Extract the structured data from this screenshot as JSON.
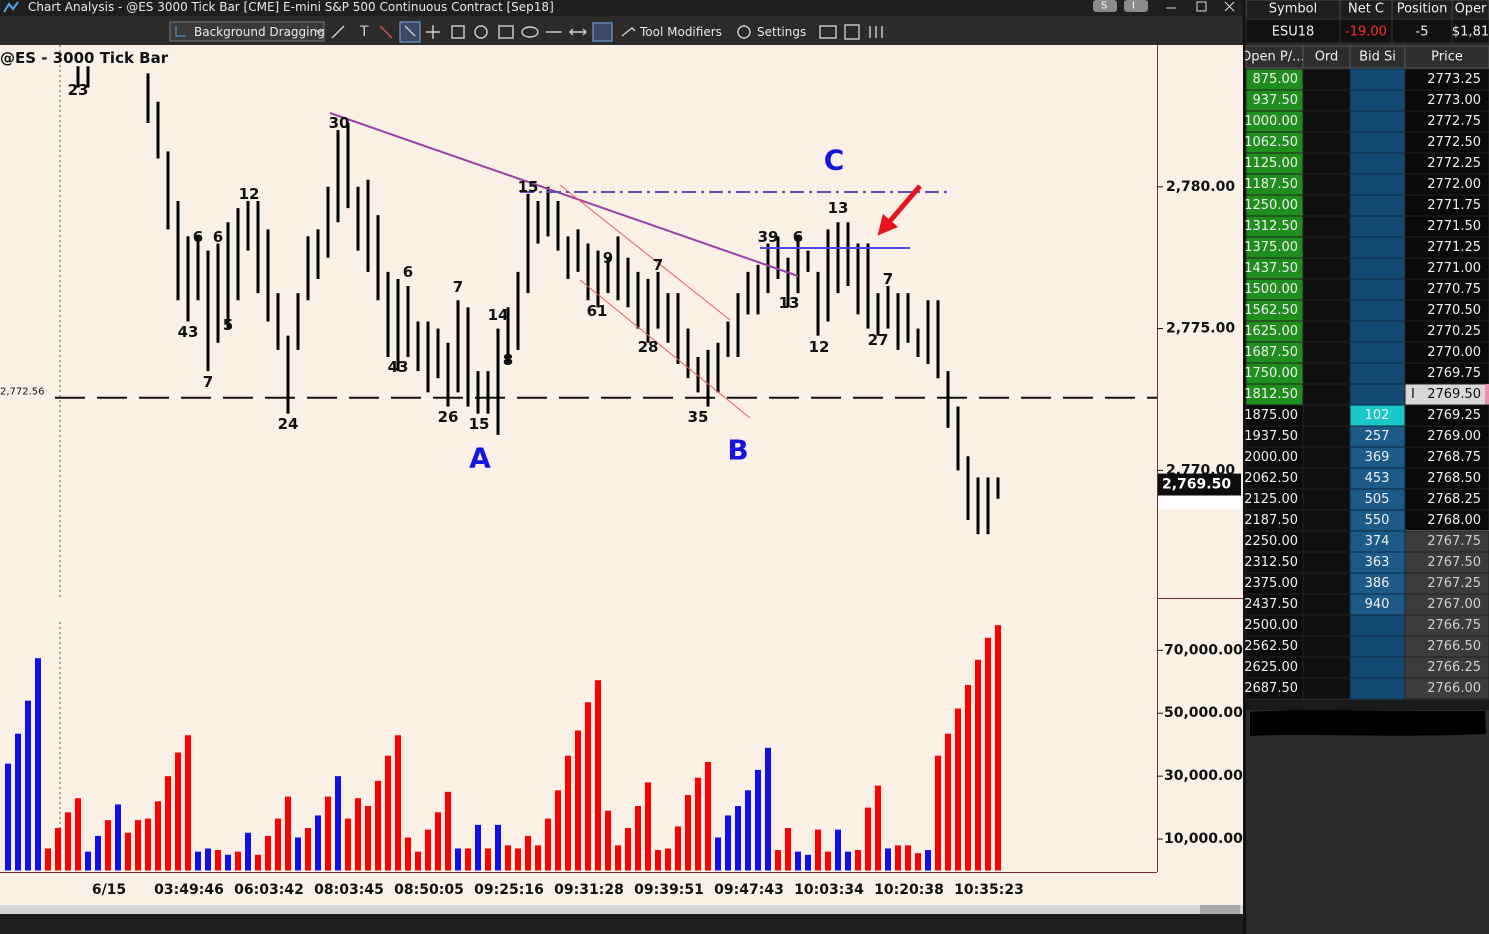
{
  "window": {
    "title": "Chart Analysis - @ES 3000 Tick Bar [CME] E-mini S&P 500 Continuous Contract [Sep18]",
    "badges": [
      "S",
      "I"
    ],
    "toolbar": [
      "Background Dragging",
      "Tool Modifiers",
      "Settings"
    ]
  },
  "chart_data": [
    {
      "type": "range_bar",
      "title": "@ES - 3000 Tick Bar",
      "color": "#000000",
      "highs": [
        null,
        null,
        null,
        null,
        null,
        null,
        null,
        2784.25,
        2784.25,
        null,
        null,
        null,
        null,
        null,
        2784.0,
        2783.0,
        2781.25,
        2779.5,
        2778.25,
        2778.25,
        2777.75,
        2778.0,
        2778.75,
        2779.25,
        2779.5,
        2779.5,
        2778.5,
        2776.25,
        2774.75,
        2776.25,
        2778.25,
        2778.5,
        2780.0,
        2782.0,
        2782.25,
        2780.0,
        2780.25,
        2779.0,
        2777.0,
        2776.75,
        2776.5,
        2775.25,
        2775.25,
        2775.0,
        2774.5,
        2776.0,
        2775.75,
        2773.5,
        2773.5,
        2775.0,
        2775.75,
        2777.0,
        2779.75,
        2779.5,
        2780.0,
        2779.5,
        2778.25,
        2778.5,
        2778.0,
        2777.75,
        2777.5,
        2778.25,
        2777.5,
        2777.0,
        2776.75,
        2777.0,
        2776.25,
        2776.25,
        2775.0,
        2774.0,
        2774.25,
        2774.5,
        2775.25,
        2776.25,
        2777.0,
        2777.25,
        2778.0,
        2778.25,
        2777.5,
        2778.25,
        2777.75,
        2777.0,
        2778.5,
        2778.75,
        2778.75,
        2778.0,
        2778.0,
        2776.25,
        2776.5,
        2776.25,
        2776.25,
        2775.0,
        2776.0,
        2776.0,
        2773.5,
        2772.25,
        2770.5,
        2769.75,
        2769.75,
        2769.75
      ],
      "lows": [
        null,
        null,
        null,
        null,
        null,
        null,
        null,
        2783.5,
        2783.5,
        null,
        null,
        null,
        null,
        null,
        2782.25,
        2781.0,
        2778.5,
        2776.0,
        2775.25,
        2776.0,
        2773.5,
        2774.5,
        2775.0,
        2776.0,
        2777.75,
        2776.25,
        2775.25,
        2774.25,
        2772.0,
        2774.25,
        2776.0,
        2776.75,
        2777.5,
        2778.75,
        2779.25,
        2777.75,
        2777.0,
        2776.0,
        2774.0,
        2773.5,
        2774.0,
        2773.5,
        2772.75,
        2773.25,
        2772.25,
        2772.75,
        2772.25,
        2772.0,
        2772.0,
        2771.25,
        2773.75,
        2774.25,
        2776.25,
        2778.0,
        2778.25,
        2777.75,
        2776.75,
        2777.0,
        2776.0,
        2775.75,
        2776.25,
        2776.0,
        2775.75,
        2775.0,
        2774.5,
        2775.0,
        2774.5,
        2773.75,
        2773.25,
        2772.75,
        2772.25,
        2772.75,
        2774.0,
        2774.0,
        2775.5,
        2775.5,
        2776.25,
        2776.75,
        2775.75,
        2776.25,
        2777.0,
        2774.75,
        2775.25,
        2776.25,
        2776.5,
        2775.5,
        2775.0,
        2774.75,
        2775.0,
        2774.25,
        2774.5,
        2774.0,
        2773.75,
        2773.25,
        2771.5,
        2770.0,
        2768.25,
        2767.75,
        2767.75,
        2769.0
      ],
      "ylim": [
        2765.5,
        2785
      ],
      "yticks": [
        {
          "value": 2780,
          "label": "2,780.00"
        },
        {
          "value": 2775,
          "label": "2,775.00"
        },
        {
          "value": 2770,
          "label": "2,770.00"
        }
      ],
      "reference_line": {
        "value": 2772.56,
        "label": "2,772.56"
      },
      "last_price": {
        "value": 2769.5,
        "label": "2,769.50"
      },
      "bar_labels": [
        "23",
        "30",
        "12",
        "6",
        "6",
        "43",
        "5",
        "7",
        "24",
        "6",
        "43",
        "7",
        "26",
        "15",
        "14",
        "8",
        "15",
        "9",
        "61",
        "7",
        "28",
        "35",
        "39",
        "6",
        "13",
        "13",
        "12",
        "7",
        "27"
      ],
      "wave_labels": [
        "A",
        "B",
        "C"
      ],
      "x_labels": [
        "6/15",
        "03:49:46",
        "06:03:42",
        "08:03:45",
        "08:50:05",
        "09:25:16",
        "09:31:28",
        "09:39:51",
        "09:47:43",
        "10:03:34",
        "10:20:38",
        "10:35:23"
      ]
    },
    {
      "type": "bar",
      "values": [
        34000,
        43500,
        54000,
        67500,
        7000,
        13500,
        18500,
        23000,
        6000,
        11000,
        16000,
        21000,
        12000,
        16000,
        16500,
        22000,
        30000,
        37500,
        43000,
        6000,
        7000,
        6500,
        5000,
        6000,
        12000,
        5000,
        11000,
        16500,
        23500,
        10500,
        13500,
        17500,
        23500,
        30000,
        16500,
        23000,
        20500,
        28500,
        36500,
        43000,
        10500,
        6000,
        13000,
        18500,
        25000,
        7000,
        7000,
        14500,
        7000,
        14500,
        8000,
        7000,
        11000,
        8000,
        16500,
        25500,
        36500,
        44500,
        53500,
        60500,
        19000,
        8000,
        13500,
        20500,
        28000,
        6500,
        7000,
        14000,
        24000,
        29500,
        34500,
        10500,
        17500,
        20500,
        25500,
        32000,
        39000,
        6500,
        13500,
        6000,
        5000,
        13000,
        6000,
        13000,
        6000,
        6500,
        20000,
        27000,
        7000,
        8000,
        8000,
        5500,
        6500,
        36500,
        43500,
        51500,
        59000,
        67000,
        74000,
        78000
      ],
      "colors": [
        "#1010ee",
        "#1010ee",
        "#1010ee",
        "#1010ee",
        "#ff0000",
        "#ff0000",
        "#ff0000",
        "#ff0000",
        "#1010ee",
        "#1010ee",
        "#ff0000",
        "#1010ee",
        "#ff0000",
        "#ff0000",
        "#ff0000",
        "#ff0000",
        "#ff0000",
        "#ff0000",
        "#ff0000",
        "#1010ee",
        "#1010ee",
        "#ff0000",
        "#1010ee",
        "#ff0000",
        "#1010ee",
        "#ff0000",
        "#ff0000",
        "#ff0000",
        "#ff0000",
        "#1010ee",
        "#ff0000",
        "#1010ee",
        "#ff0000",
        "#1010ee",
        "#ff0000",
        "#ff0000",
        "#ff0000",
        "#ff0000",
        "#ff0000",
        "#ff0000",
        "#ff0000",
        "#ff0000",
        "#ff0000",
        "#ff0000",
        "#ff0000",
        "#1010ee",
        "#ff0000",
        "#1010ee",
        "#ff0000",
        "#1010ee",
        "#ff0000",
        "#ff0000",
        "#ff0000",
        "#ff0000",
        "#ff0000",
        "#ff0000",
        "#ff0000",
        "#ff0000",
        "#ff0000",
        "#ff0000",
        "#ff0000",
        "#ff0000",
        "#ff0000",
        "#ff0000",
        "#ff0000",
        "#ff0000",
        "#ff0000",
        "#ff0000",
        "#ff0000",
        "#ff0000",
        "#ff0000",
        "#1010ee",
        "#1010ee",
        "#1010ee",
        "#1010ee",
        "#1010ee",
        "#1010ee",
        "#ff0000",
        "#ff0000",
        "#1010ee",
        "#1010ee",
        "#ff0000",
        "#ff0000",
        "#1010ee",
        "#1010ee",
        "#ff0000",
        "#ff0000",
        "#ff0000",
        "#1010ee",
        "#ff0000",
        "#ff0000",
        "#ff0000",
        "#1010ee",
        "#ff0000",
        "#ff0000",
        "#ff0000",
        "#ff0000",
        "#ff0000",
        "#ff0000",
        "#ff0000"
      ],
      "ylim": [
        0,
        86000
      ],
      "yticks": [
        {
          "value": 10000,
          "label": "10,000.00"
        },
        {
          "value": 30000,
          "label": "30,000.00"
        },
        {
          "value": 50000,
          "label": "50,000.00"
        },
        {
          "value": 70000,
          "label": "70,000.00"
        }
      ]
    }
  ],
  "dom": {
    "header": [
      "Symbol",
      "Net C",
      "Position",
      "Oper"
    ],
    "quote": [
      "ESU18",
      "-19.00",
      "-5",
      "$1,81"
    ],
    "columns": [
      "Open P/...",
      "Ord",
      "Bid Si",
      "Price"
    ],
    "rows": [
      {
        "pl": "875.00",
        "price": "2773.25"
      },
      {
        "pl": "937.50",
        "price": "2773.00"
      },
      {
        "pl": "1000.00",
        "price": "2772.75"
      },
      {
        "pl": "1062.50",
        "price": "2772.50"
      },
      {
        "pl": "1125.00",
        "price": "2772.25"
      },
      {
        "pl": "1187.50",
        "price": "2772.00"
      },
      {
        "pl": "1250.00",
        "price": "2771.75"
      },
      {
        "pl": "1312.50",
        "price": "2771.50"
      },
      {
        "pl": "1375.00",
        "price": "2771.25"
      },
      {
        "pl": "1437.50",
        "price": "2771.00"
      },
      {
        "pl": "1500.00",
        "price": "2770.75"
      },
      {
        "pl": "1562.50",
        "price": "2770.50"
      },
      {
        "pl": "1625.00",
        "price": "2770.25"
      },
      {
        "pl": "1687.50",
        "price": "2770.00"
      },
      {
        "pl": "1750.00",
        "price": "2769.75"
      },
      {
        "pl": "1812.50",
        "price": "2769.50",
        "marker": "I"
      },
      {
        "pl": "1875.00",
        "bid": "102",
        "price": "2769.25"
      },
      {
        "pl": "1937.50",
        "bid": "257",
        "price": "2769.00"
      },
      {
        "pl": "2000.00",
        "bid": "369",
        "price": "2768.75"
      },
      {
        "pl": "2062.50",
        "bid": "453",
        "price": "2768.50"
      },
      {
        "pl": "2125.00",
        "bid": "505",
        "price": "2768.25"
      },
      {
        "pl": "2187.50",
        "bid": "550",
        "price": "2768.00"
      },
      {
        "pl": "2250.00",
        "bid": "374",
        "price": "2767.75"
      },
      {
        "pl": "2312.50",
        "bid": "363",
        "price": "2767.50"
      },
      {
        "pl": "2375.00",
        "bid": "386",
        "price": "2767.25"
      },
      {
        "pl": "2437.50",
        "bid": "940",
        "price": "2767.00"
      },
      {
        "pl": "2500.00",
        "price": "2766.75"
      },
      {
        "pl": "2562.50",
        "price": "2766.50"
      },
      {
        "pl": "2625.00",
        "price": "2766.25"
      },
      {
        "pl": "2687.50",
        "price": "2766.00"
      }
    ]
  }
}
